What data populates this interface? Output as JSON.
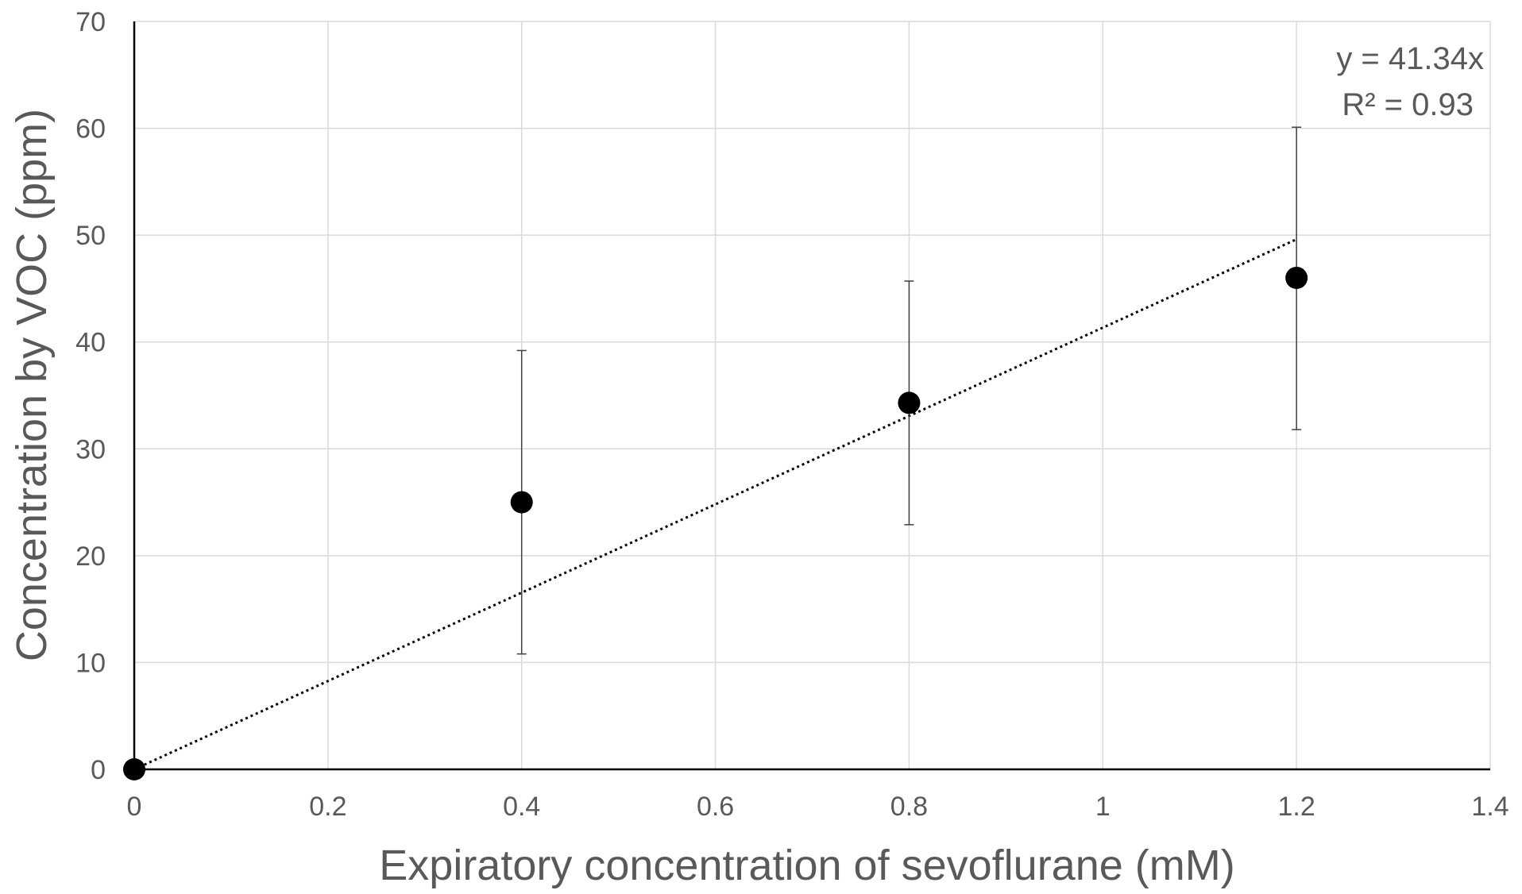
{
  "chart_data": {
    "type": "scatter",
    "xlabel": "Expiratory concentration of sevoflurane (mM)",
    "ylabel": "Concentration by VOC (ppm)",
    "xlim": [
      0,
      1.4
    ],
    "ylim": [
      0,
      70
    ],
    "x_ticks": [
      0,
      0.2,
      0.4,
      0.6,
      0.8,
      1,
      1.2,
      1.4
    ],
    "x_tick_labels": [
      "0",
      "0.2",
      "0.4",
      "0.6",
      "0.8",
      "1",
      "1.2",
      "1.4"
    ],
    "y_ticks": [
      0,
      10,
      20,
      30,
      40,
      50,
      60,
      70
    ],
    "y_tick_labels": [
      "0",
      "10",
      "20",
      "30",
      "40",
      "50",
      "60",
      "70"
    ],
    "grid": true,
    "series": [
      {
        "x": [
          0,
          0.4,
          0.8,
          1.2
        ],
        "y": [
          0,
          25,
          34.3,
          46
        ],
        "error_low": [
          0,
          10.8,
          22.9,
          31.8
        ],
        "error_high": [
          0,
          39.2,
          45.7,
          60.1
        ],
        "color": "#000000"
      }
    ],
    "trendline": {
      "type": "linear",
      "slope": 41.34,
      "intercept": 0,
      "x_range": [
        0,
        1.2
      ],
      "style": "dotted",
      "color": "#000000"
    },
    "annotations": [
      {
        "text": "y = 41.34x"
      },
      {
        "text": "R² = 0.93"
      }
    ]
  }
}
